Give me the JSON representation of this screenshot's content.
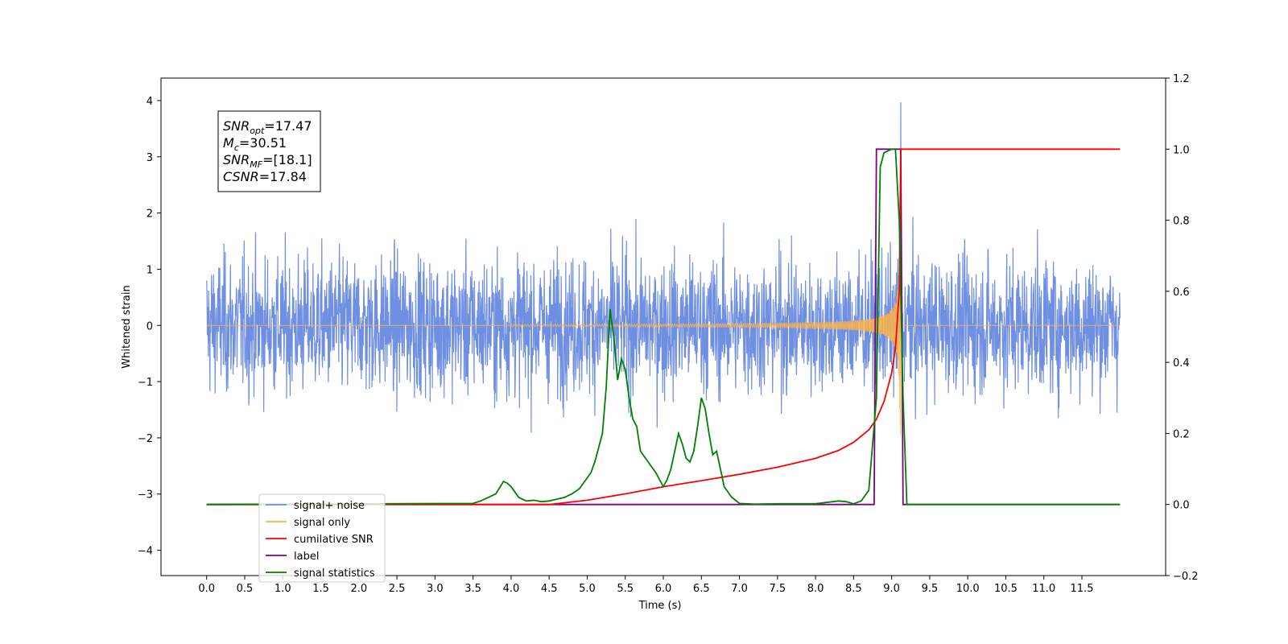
{
  "chart_data": {
    "type": "line",
    "xlabel": "Time (s)",
    "ylabel_left": "Whitened strain",
    "ylabel_right": "",
    "x_ticks": [
      "0.0",
      "0.5",
      "1.0",
      "1.5",
      "2.0",
      "2.5",
      "3.0",
      "3.5",
      "4.0",
      "4.5",
      "5.0",
      "5.5",
      "6.0",
      "6.5",
      "7.0",
      "7.5",
      "8.0",
      "8.5",
      "9.0",
      "9.5",
      "10.0",
      "10.5",
      "11.0",
      "11.5"
    ],
    "xlim": [
      -0.6,
      12.6
    ],
    "ylim_left": [
      -4.45,
      4.4
    ],
    "ylim_right": [
      -0.2,
      1.2
    ],
    "y_ticks_left": [
      4,
      3,
      2,
      1,
      0,
      -1,
      -2,
      -3,
      -4
    ],
    "y_ticks_right": [
      1.2,
      1.0,
      0.8,
      0.6,
      0.4,
      0.2,
      0.0,
      -0.2
    ],
    "grid": false,
    "annotation": {
      "lines": [
        {
          "base": "SNR",
          "sub": "opt",
          "value": "=17.47"
        },
        {
          "base": "M",
          "sub": "c",
          "value": "=30.51"
        },
        {
          "base": "SNR",
          "sub": "MF",
          "value": "=[18.1]"
        },
        {
          "base": "CSNR",
          "sub": "",
          "value": "=17.84"
        }
      ]
    },
    "legend": {
      "placement": "lower-left",
      "entries": [
        {
          "name": "signal+ noise",
          "color": "#6f8fe3"
        },
        {
          "name": "signal only",
          "color": "#ffb347"
        },
        {
          "name": "cumilative SNR",
          "color": "#ff0000"
        },
        {
          "name": "label",
          "color": "#800080"
        },
        {
          "name": "signal statistics",
          "color": "#008000"
        }
      ]
    },
    "series": [
      {
        "name": "signal+ noise",
        "axis": "left",
        "color": "#6f8fe3",
        "x_range": [
          0.0,
          12.0
        ],
        "amplitude_range": [
          -2.7,
          3.1
        ],
        "peak": {
          "x": 9.12,
          "ymax": 3.97,
          "ymin": -4.1
        }
      },
      {
        "name": "signal only",
        "axis": "left",
        "color": "#ffb347",
        "x_range": [
          0.0,
          12.0
        ],
        "chirp_end": 9.12,
        "peak_amplitude": 2.0
      },
      {
        "name": "cumilative SNR",
        "axis": "right",
        "color": "#ff0000",
        "x": [
          0.0,
          4.5,
          5.0,
          5.5,
          6.0,
          6.5,
          7.0,
          7.5,
          8.0,
          8.3,
          8.5,
          8.7,
          8.8,
          8.9,
          9.0,
          9.05,
          9.1,
          9.12,
          12.0
        ],
        "y": [
          0.0,
          0.0,
          0.012,
          0.03,
          0.05,
          0.067,
          0.085,
          0.105,
          0.13,
          0.152,
          0.175,
          0.21,
          0.24,
          0.29,
          0.37,
          0.44,
          0.6,
          1.0,
          1.0
        ]
      },
      {
        "name": "label",
        "axis": "right",
        "color": "#800080",
        "x": [
          0.0,
          8.77,
          8.8,
          9.12,
          9.15,
          12.0
        ],
        "y": [
          0.0,
          0.0,
          1.0,
          1.0,
          0.0,
          0.0
        ]
      },
      {
        "name": "signal statistics",
        "axis": "right",
        "color": "#008000",
        "x": [
          0.0,
          3.5,
          3.6,
          3.7,
          3.8,
          3.9,
          3.95,
          4.0,
          4.1,
          4.2,
          4.3,
          4.4,
          4.5,
          4.6,
          4.7,
          4.8,
          4.9,
          5.0,
          5.05,
          5.1,
          5.15,
          5.2,
          5.25,
          5.3,
          5.35,
          5.4,
          5.45,
          5.5,
          5.55,
          5.6,
          5.65,
          5.7,
          5.8,
          5.9,
          6.0,
          6.05,
          6.1,
          6.15,
          6.2,
          6.25,
          6.3,
          6.35,
          6.4,
          6.45,
          6.5,
          6.55,
          6.6,
          6.65,
          6.7,
          6.75,
          6.8,
          6.9,
          7.0,
          7.2,
          7.5,
          8.0,
          8.3,
          8.4,
          8.5,
          8.6,
          8.7,
          8.8,
          8.85,
          8.9,
          9.0,
          9.05,
          9.1,
          9.15,
          9.2,
          12.0
        ],
        "y": [
          0.0,
          0.003,
          0.01,
          0.02,
          0.03,
          0.065,
          0.06,
          0.05,
          0.02,
          0.01,
          0.012,
          0.008,
          0.01,
          0.015,
          0.02,
          0.03,
          0.045,
          0.075,
          0.09,
          0.12,
          0.16,
          0.2,
          0.33,
          0.55,
          0.47,
          0.35,
          0.41,
          0.38,
          0.3,
          0.24,
          0.22,
          0.15,
          0.12,
          0.09,
          0.05,
          0.07,
          0.1,
          0.15,
          0.2,
          0.17,
          0.13,
          0.12,
          0.15,
          0.22,
          0.3,
          0.27,
          0.2,
          0.14,
          0.15,
          0.1,
          0.05,
          0.02,
          0.003,
          0.001,
          0.002,
          0.002,
          0.01,
          0.008,
          0.002,
          0.01,
          0.04,
          0.3,
          0.95,
          0.99,
          1.0,
          1.0,
          0.8,
          0.3,
          0.0,
          0.0
        ]
      }
    ]
  }
}
